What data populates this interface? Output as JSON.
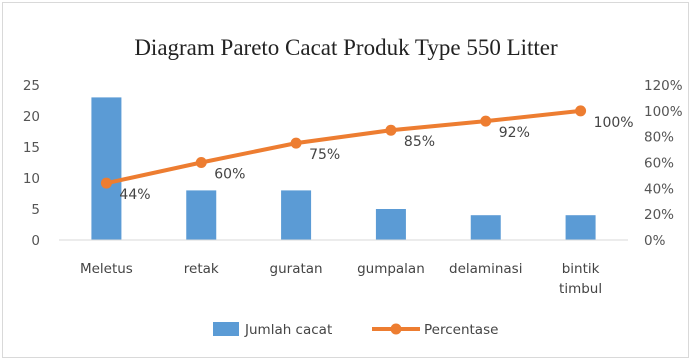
{
  "chart_data": {
    "type": "bar",
    "title": "Diagram Pareto Cacat Produk Type 550 Litter",
    "categories": [
      "Meletus",
      "retak",
      "guratan",
      "gumpalan",
      "delaminasi",
      "bintik timbul"
    ],
    "category_lines": [
      [
        "Meletus"
      ],
      [
        "retak"
      ],
      [
        "guratan"
      ],
      [
        "gumpalan"
      ],
      [
        "delaminasi"
      ],
      [
        "bintik",
        "timbul"
      ]
    ],
    "series": [
      {
        "name": "Jumlah cacat",
        "type": "bar",
        "axis": "left",
        "values": [
          23,
          8,
          8,
          5,
          4,
          4
        ],
        "color": "#5b9bd5"
      },
      {
        "name": "Percentase",
        "type": "line",
        "axis": "right",
        "values": [
          44,
          60,
          75,
          85,
          92,
          100
        ],
        "data_labels": [
          "44%",
          "60%",
          "75%",
          "85%",
          "92%",
          "100%"
        ],
        "color": "#ed7d31"
      }
    ],
    "ylim": [
      0,
      25
    ],
    "y_ticks": [
      "0",
      "5",
      "10",
      "15",
      "20",
      "25"
    ],
    "y2lim": [
      0,
      120
    ],
    "y2_ticks": [
      "0%",
      "20%",
      "40%",
      "60%",
      "80%",
      "100%",
      "120%"
    ],
    "xlabel": "",
    "ylabel": "",
    "grid": false,
    "legend": "bottom"
  }
}
